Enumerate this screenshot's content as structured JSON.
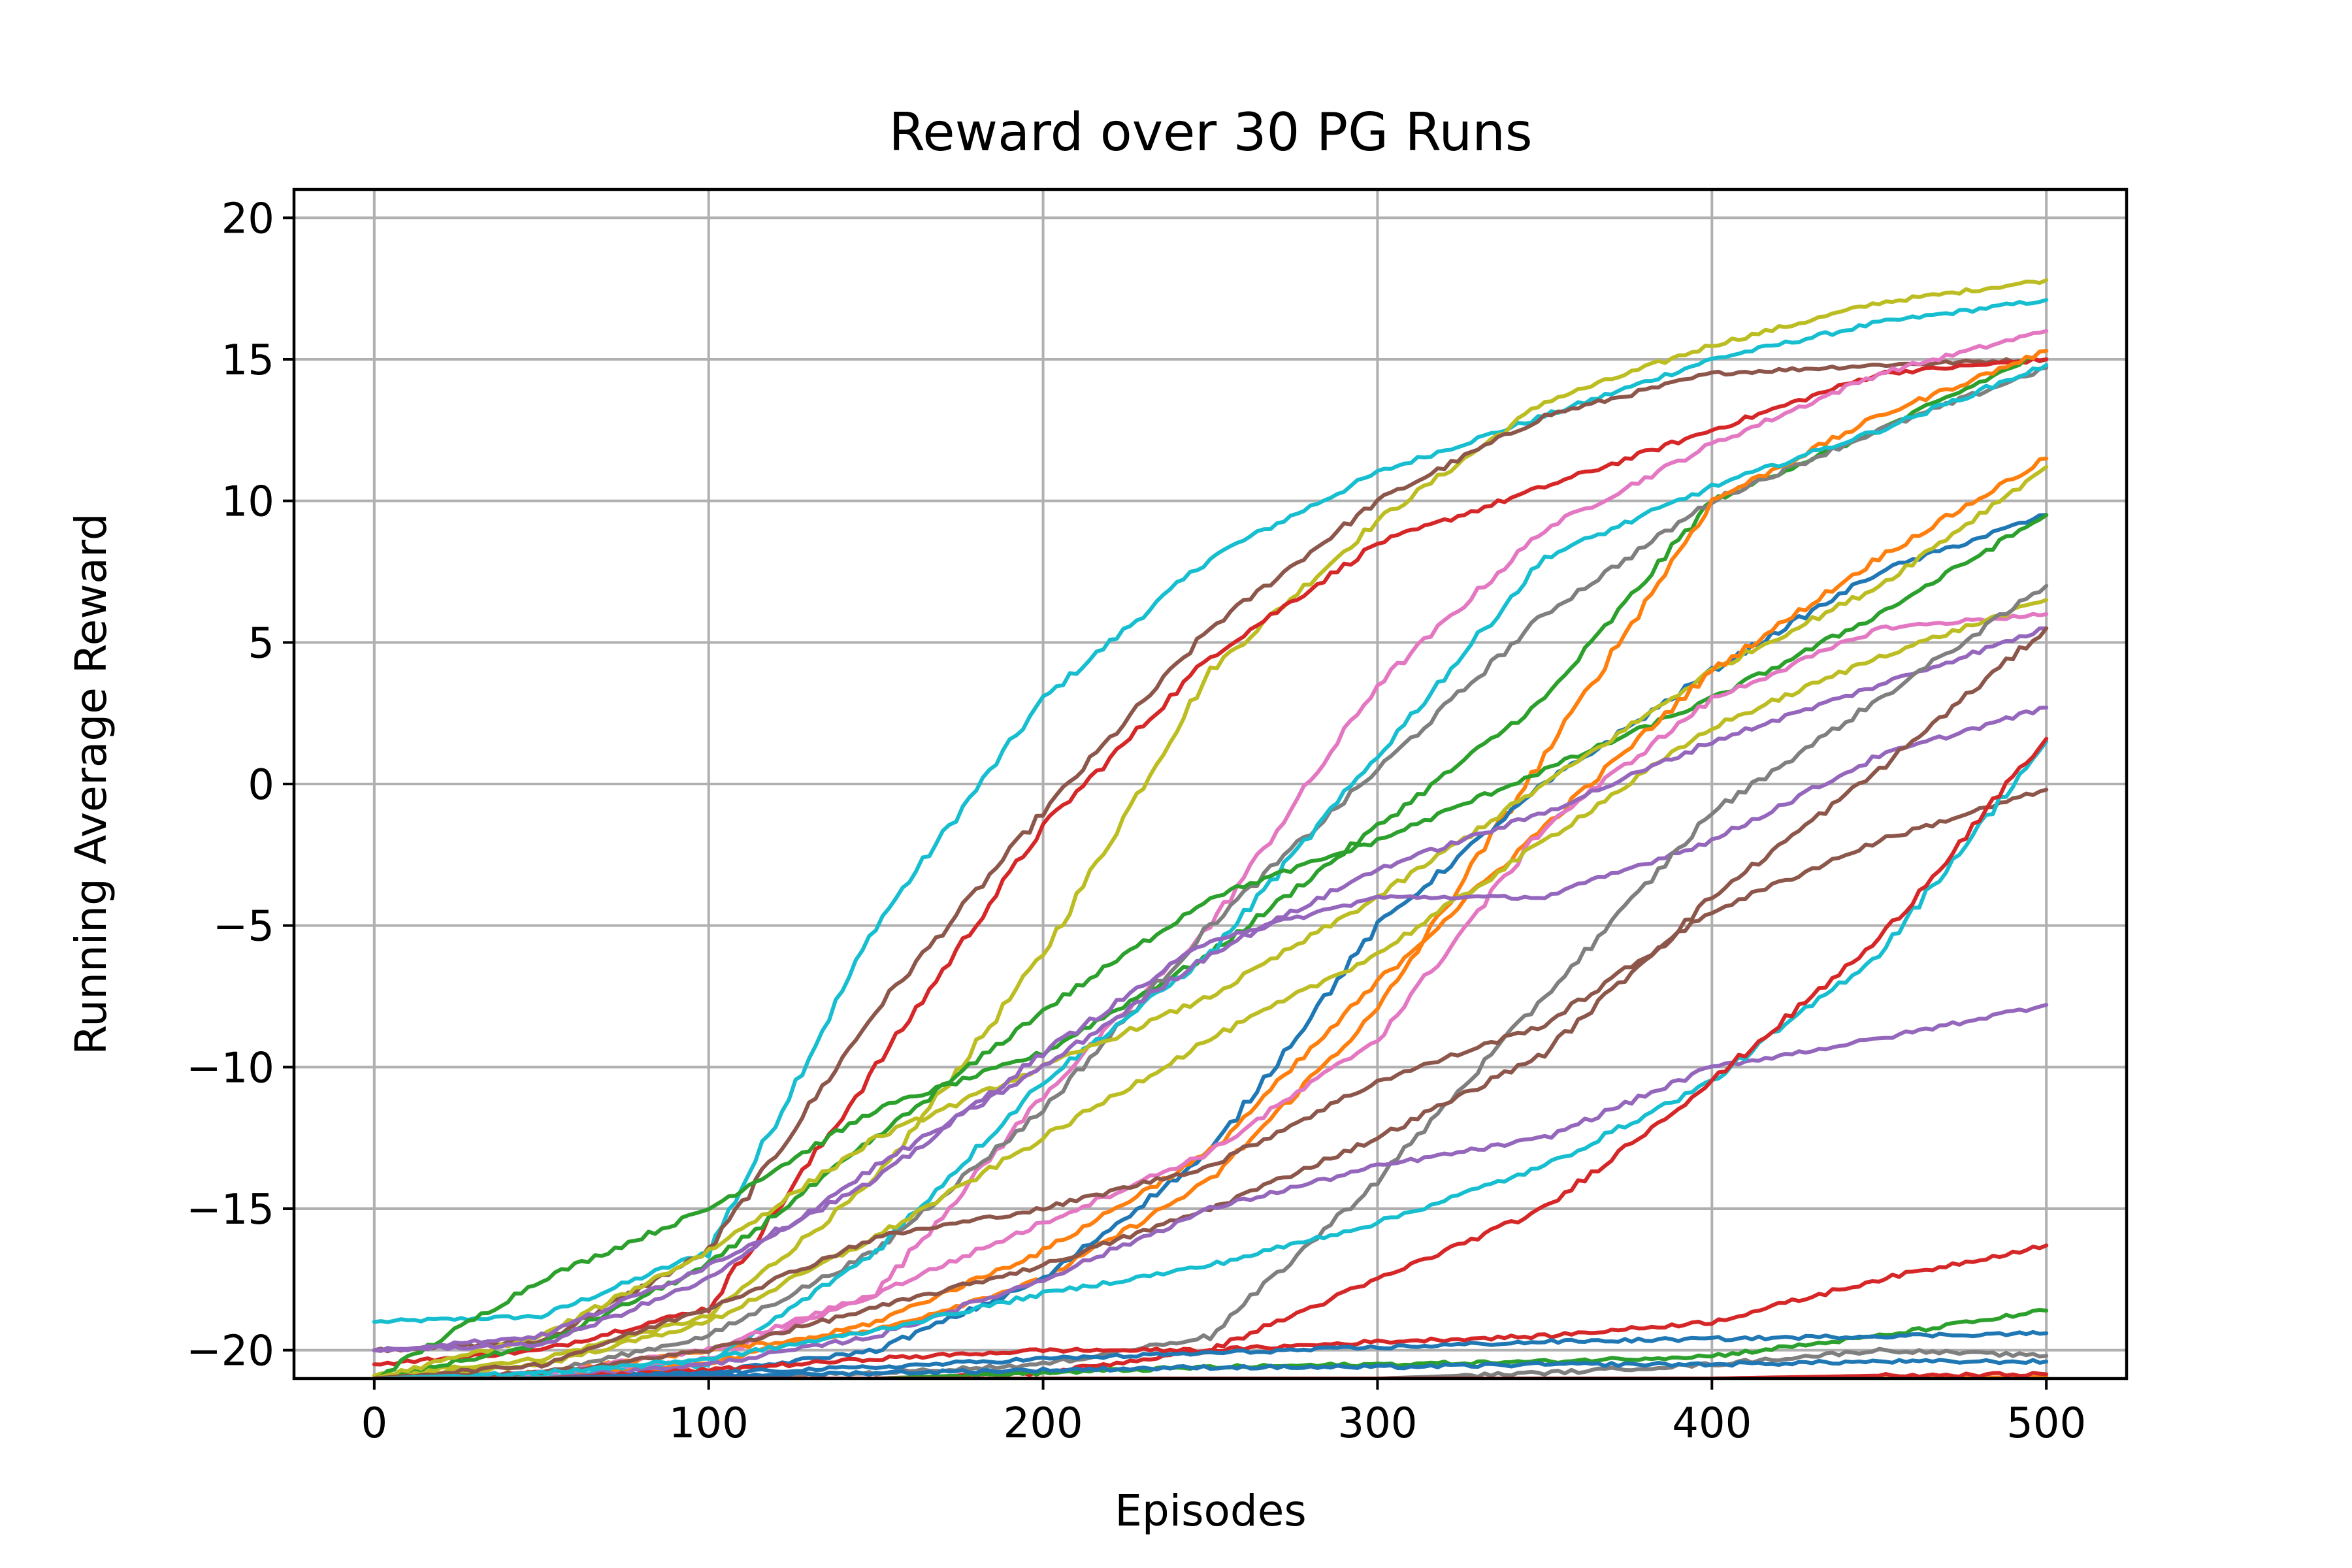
{
  "chart_data": {
    "type": "line",
    "title": "Reward over 30 PG Runs",
    "xlabel": "Episodes",
    "ylabel": "Running Average Reward",
    "xlim": [
      -24,
      524
    ],
    "ylim": [
      -21,
      21
    ],
    "xticks": [
      0,
      100,
      200,
      300,
      400,
      500
    ],
    "yticks": [
      -20,
      -15,
      -10,
      -5,
      0,
      5,
      10,
      15,
      20
    ],
    "xtick_labels": [
      "0",
      "100",
      "200",
      "300",
      "400",
      "500"
    ],
    "ytick_labels": [
      "−20",
      "−15",
      "−10",
      "−5",
      "0",
      "5",
      "10",
      "15",
      "20"
    ],
    "grid": true,
    "legend": "none",
    "x": [
      0,
      50,
      100,
      150,
      200,
      250,
      300,
      350,
      400,
      450,
      500
    ],
    "series": [
      {
        "color": "#17becf",
        "values": [
          -19.0,
          -18.8,
          -16.5,
          -5.0,
          3.0,
          8.0,
          11.0,
          13.0,
          15.0,
          16.3,
          17.1
        ]
      },
      {
        "color": "#bcbd22",
        "values": [
          -20.9,
          -20.3,
          -18.8,
          -14.0,
          -6.0,
          4.0,
          9.3,
          13.5,
          15.5,
          17.0,
          17.8
        ]
      },
      {
        "color": "#8c564b",
        "values": [
          -20.0,
          -19.7,
          -16.5,
          -8.0,
          -1.0,
          5.5,
          10.0,
          13.0,
          14.5,
          14.8,
          15.0
        ]
      },
      {
        "color": "#d62728",
        "values": [
          -20.5,
          -20.0,
          -18.5,
          -10.0,
          -1.5,
          4.5,
          8.5,
          10.5,
          12.5,
          14.5,
          15.0
        ]
      },
      {
        "color": "#e377c2",
        "values": [
          -21.0,
          -21.0,
          -20.3,
          -18.0,
          -11.0,
          -5.0,
          3.5,
          9.0,
          12.0,
          14.5,
          16.0
        ]
      },
      {
        "color": "#2ca02c",
        "values": [
          -21.0,
          -17.5,
          -15.0,
          -11.5,
          -9.5,
          -6.0,
          -1.5,
          3.0,
          10.0,
          12.5,
          15.3
        ]
      },
      {
        "color": "#7f7f7f",
        "values": [
          -21.0,
          -20.8,
          -19.5,
          -16.5,
          -11.5,
          -5.0,
          0.5,
          6.0,
          10.0,
          12.5,
          14.7
        ]
      },
      {
        "color": "#ff7f0e",
        "values": [
          -21.0,
          -20.8,
          -20.0,
          -19.3,
          -17.5,
          -14.0,
          -8.0,
          1.0,
          10.0,
          13.0,
          15.3
        ]
      },
      {
        "color": "#17becf",
        "values": [
          -21.0,
          -20.9,
          -20.5,
          -16.5,
          -10.5,
          -6.0,
          1.0,
          8.0,
          10.5,
          12.5,
          14.8
        ]
      },
      {
        "color": "#1f77b4",
        "values": [
          -21.0,
          -21.0,
          -20.8,
          -20.0,
          -17.5,
          -13.0,
          -5.0,
          0.0,
          4.0,
          7.5,
          9.5
        ]
      },
      {
        "color": "#2ca02c",
        "values": [
          -21.0,
          -19.8,
          -17.0,
          -12.5,
          -8.0,
          -4.0,
          -2.0,
          0.5,
          3.0,
          6.0,
          9.5
        ]
      },
      {
        "color": "#bcbd22",
        "values": [
          -21.0,
          -19.5,
          -16.5,
          -12.5,
          -10.0,
          -7.5,
          -4.0,
          0.0,
          4.0,
          7.0,
          11.2
        ]
      },
      {
        "color": "#ff7f0e",
        "values": [
          -21.0,
          -21.0,
          -20.5,
          -19.0,
          -16.5,
          -13.0,
          -7.0,
          -1.5,
          4.0,
          8.0,
          11.5
        ]
      },
      {
        "color": "#e377c2",
        "values": [
          -21.0,
          -20.8,
          -20.0,
          -18.0,
          -15.5,
          -13.0,
          -9.0,
          -1.5,
          3.0,
          5.5,
          6.0
        ]
      },
      {
        "color": "#bcbd22",
        "values": [
          -21.0,
          -20.5,
          -19.0,
          -16.0,
          -12.5,
          -9.0,
          -6.0,
          -2.0,
          2.0,
          4.5,
          6.5
        ]
      },
      {
        "color": "#9467bd",
        "values": [
          -20.0,
          -19.8,
          -17.5,
          -13.5,
          -10.0,
          -6.0,
          -3.0,
          -1.0,
          1.5,
          3.5,
          5.5
        ]
      },
      {
        "color": "#9467bd",
        "values": [
          -20.0,
          -19.5,
          -17.0,
          -14.0,
          -9.5,
          -5.5,
          -4.0,
          -4.0,
          -2.0,
          1.0,
          2.7
        ]
      },
      {
        "color": "#7f7f7f",
        "values": [
          -21.0,
          -21.0,
          -21.0,
          -20.8,
          -20.5,
          -19.5,
          -14.0,
          -7.5,
          -1.0,
          3.0,
          7.0
        ]
      },
      {
        "color": "#8c564b",
        "values": [
          -21.0,
          -20.5,
          -18.5,
          -16.0,
          -15.0,
          -13.5,
          -10.5,
          -8.5,
          -4.5,
          -2.0,
          -0.2
        ]
      },
      {
        "color": "#8c564b",
        "values": [
          -21.0,
          -20.8,
          -20.0,
          -18.5,
          -17.0,
          -15.0,
          -12.5,
          -9.5,
          -4.0,
          0.5,
          5.5
        ]
      },
      {
        "color": "#9467bd",
        "values": [
          -21.0,
          -21.0,
          -20.5,
          -19.5,
          -17.5,
          -15.0,
          -13.5,
          -12.5,
          -10.0,
          -9.0,
          -7.8
        ]
      },
      {
        "color": "#17becf",
        "values": [
          -21.0,
          -20.8,
          -20.3,
          -19.3,
          -18.0,
          -17.0,
          -15.5,
          -13.5,
          -10.5,
          -6.0,
          1.5
        ]
      },
      {
        "color": "#d62728",
        "values": [
          -21.0,
          -21.0,
          -21.0,
          -21.0,
          -20.8,
          -20.0,
          -17.5,
          -15.0,
          -10.5,
          -5.5,
          1.6
        ]
      },
      {
        "color": "#d62728",
        "values": [
          -21.0,
          -21.0,
          -20.7,
          -20.3,
          -20.0,
          -20.0,
          -19.7,
          -19.5,
          -19.0,
          -17.5,
          -16.3
        ]
      },
      {
        "color": "#2ca02c",
        "values": [
          -21.0,
          -21.0,
          -21.0,
          -21.0,
          -20.8,
          -20.6,
          -20.5,
          -20.4,
          -20.2,
          -19.5,
          -18.6
        ]
      },
      {
        "color": "#1f77b4",
        "values": [
          -21.0,
          -21.0,
          -20.8,
          -20.6,
          -20.3,
          -20.1,
          -19.9,
          -19.7,
          -19.6,
          -19.5,
          -19.4
        ]
      },
      {
        "color": "#7f7f7f",
        "values": [
          -21.0,
          -21.0,
          -21.0,
          -21.0,
          -21.0,
          -21.0,
          -21.0,
          -20.8,
          -20.5,
          -20.0,
          -20.2
        ]
      },
      {
        "color": "#1f77b4",
        "values": [
          -21.0,
          -21.0,
          -20.9,
          -20.8,
          -20.7,
          -20.6,
          -20.6,
          -20.5,
          -20.5,
          -20.4,
          -20.4
        ]
      },
      {
        "color": "#ff7f0e",
        "values": [
          -21.0,
          -21.0,
          -21.0,
          -21.0,
          -21.0,
          -21.0,
          -21.0,
          -21.0,
          -21.0,
          -21.0,
          -20.95
        ]
      },
      {
        "color": "#d62728",
        "values": [
          -21.0,
          -21.0,
          -21.0,
          -21.0,
          -21.0,
          -21.0,
          -21.0,
          -21.0,
          -21.0,
          -20.9,
          -20.85
        ]
      }
    ]
  }
}
